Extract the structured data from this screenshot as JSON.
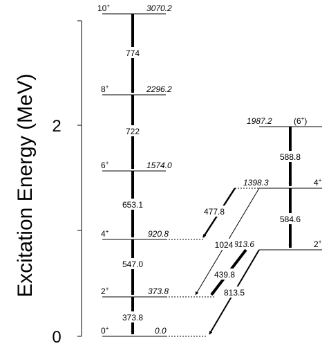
{
  "axis": {
    "title": "Excitation Energy (MeV)",
    "tick_labels": [
      "0",
      "2"
    ],
    "ticks_mev": [
      0,
      1,
      2,
      3
    ]
  },
  "left_band": {
    "levels": [
      {
        "spin": "0",
        "parity": "+",
        "energy": "0.0"
      },
      {
        "spin": "2",
        "parity": "+",
        "energy": "373.8"
      },
      {
        "spin": "4",
        "parity": "+",
        "energy": "920.8"
      },
      {
        "spin": "6",
        "parity": "+",
        "energy": "1574.0"
      },
      {
        "spin": "8",
        "parity": "+",
        "energy": "2296.2"
      },
      {
        "spin": "10",
        "parity": "+",
        "energy": "3070.2"
      }
    ],
    "transitions": [
      "774",
      "722",
      "653.1",
      "547.0",
      "373.8"
    ]
  },
  "right_band": {
    "levels": [
      {
        "energy": "1987.2",
        "spin_label": "(6",
        "spin_sup": "+",
        "spin_close": ")"
      },
      {
        "energy": "1398.3",
        "spin_label": "4",
        "spin_sup": "+",
        "spin_close": ""
      },
      {
        "energy": "813.6",
        "spin_label": "2",
        "spin_sup": "+",
        "spin_close": ""
      }
    ],
    "transitions": [
      "588.8",
      "584.6"
    ]
  },
  "interband_transitions": [
    "477.8",
    "1024",
    "439.8",
    "813.5"
  ],
  "colors": {
    "line": "#000000",
    "background": "#ffffff"
  }
}
